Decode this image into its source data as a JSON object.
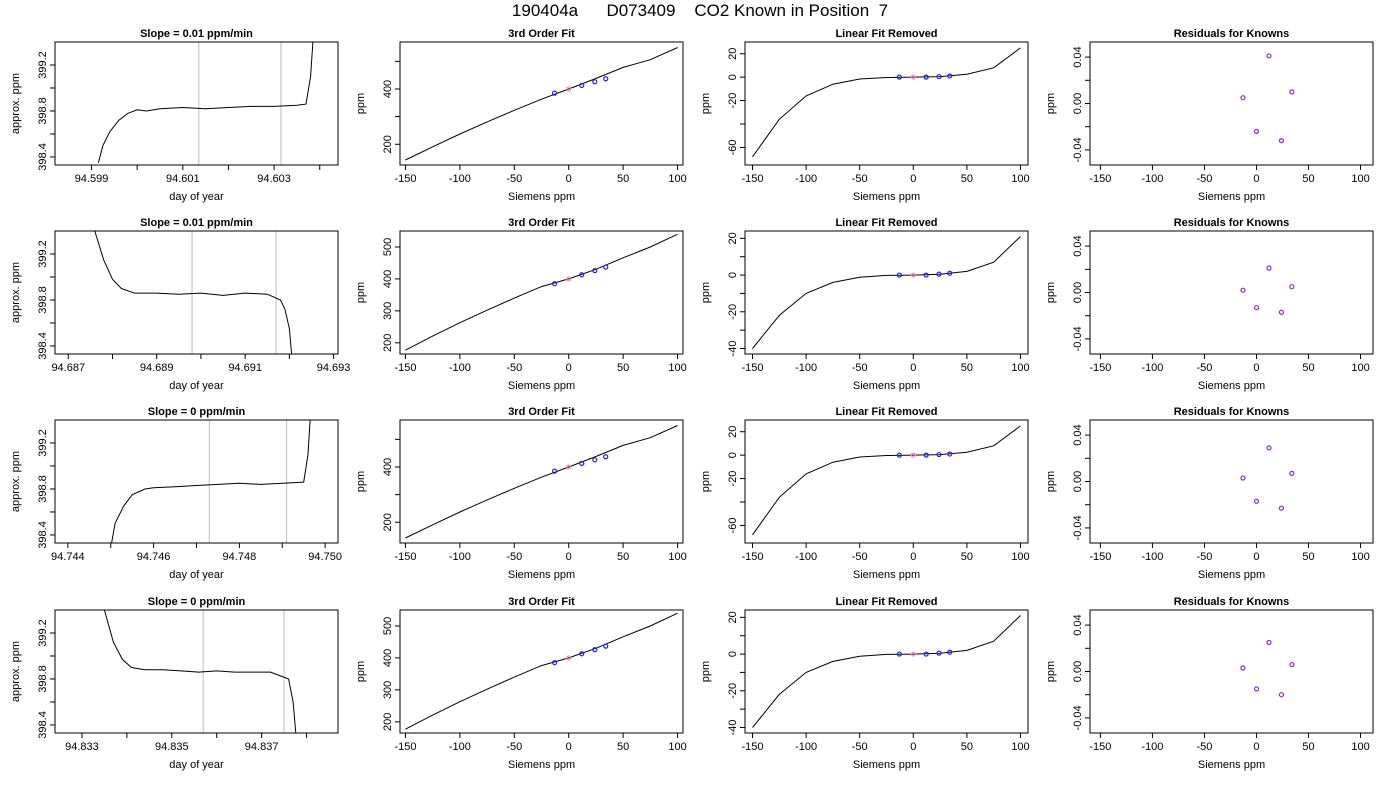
{
  "figure": {
    "title": "190404a      D073409    CO2 Known in Position  7"
  },
  "chart_data": [
    {
      "type": "line",
      "title": "Slope =  0.01  ppm/min",
      "xlabel": "day of year",
      "ylabel": "approx. ppm",
      "xlim": [
        94.5982,
        94.6044
      ],
      "ylim": [
        398.33,
        399.4
      ],
      "xticks": [
        94.599,
        94.6,
        94.601,
        94.602,
        94.603,
        94.604
      ],
      "xtick_labels": [
        "94.599",
        "",
        "94.601",
        "",
        "94.603",
        ""
      ],
      "yticks": [
        398.4,
        398.6,
        398.8,
        399.0,
        399.2
      ],
      "ytick_labels": [
        "398.4",
        "",
        "398.8",
        "",
        "399.2"
      ],
      "vlines": [
        94.60135,
        94.60315
      ],
      "x": [
        94.59915,
        94.59925,
        94.5994,
        94.5996,
        94.5998,
        94.6,
        94.6002,
        94.6005,
        94.601,
        94.6015,
        94.602,
        94.6025,
        94.603,
        94.6035,
        94.6037,
        94.6038,
        94.60385
      ],
      "y": [
        398.35,
        398.5,
        398.62,
        398.72,
        398.78,
        398.81,
        398.8,
        398.82,
        398.83,
        398.82,
        398.83,
        398.84,
        398.84,
        398.85,
        398.86,
        399.1,
        399.4
      ]
    },
    {
      "type": "line",
      "title": "3rd Order Fit",
      "xlabel": "Siemens ppm",
      "ylabel": "ppm",
      "xlim": [
        -155,
        105
      ],
      "ylim": [
        125,
        570
      ],
      "xticks": [
        -150,
        -100,
        -50,
        0,
        50,
        100
      ],
      "xtick_labels": [
        "-150",
        "-100",
        "-50",
        "0",
        "50",
        "100"
      ],
      "yticks": [
        200,
        300,
        400,
        500
      ],
      "ytick_labels": [
        "200",
        "",
        "400",
        ""
      ],
      "x": [
        -150,
        -125,
        -100,
        -75,
        -50,
        -25,
        0,
        25,
        50,
        75,
        100
      ],
      "y": [
        143,
        191,
        237,
        281,
        323,
        363,
        400,
        438,
        478,
        506,
        550
      ],
      "points_x": [
        -13,
        0,
        12,
        24,
        34
      ],
      "points_y": [
        385,
        400,
        413,
        426,
        437
      ]
    },
    {
      "type": "line",
      "title": "Linear Fit Removed",
      "xlabel": "Siemens ppm",
      "ylabel": "ppm",
      "xlim": [
        -157,
        107
      ],
      "ylim": [
        -75,
        30
      ],
      "xticks": [
        -150,
        -100,
        -50,
        0,
        50,
        100
      ],
      "xtick_labels": [
        "-150",
        "-100",
        "-50",
        "0",
        "50",
        "100"
      ],
      "yticks": [
        -60,
        -40,
        -20,
        0,
        20
      ],
      "ytick_labels": [
        "-60",
        "",
        "-20",
        "0",
        "20"
      ],
      "x": [
        -150,
        -125,
        -100,
        -75,
        -50,
        -25,
        0,
        25,
        50,
        75,
        100
      ],
      "y": [
        -68,
        -36,
        -16,
        -6,
        -1.6,
        -0.3,
        0,
        0.5,
        2.5,
        8,
        25
      ],
      "points_x": [
        -13,
        0,
        12,
        24,
        34
      ],
      "points_y": [
        0,
        0,
        0,
        0.5,
        1
      ]
    },
    {
      "type": "scatter",
      "title": "Residuals for Knowns",
      "xlabel": "Siemens ppm",
      "ylabel": "ppm",
      "xlim": [
        -160,
        112
      ],
      "ylim": [
        -0.053,
        0.053
      ],
      "xticks": [
        -150,
        -100,
        -50,
        0,
        50,
        100
      ],
      "xtick_labels": [
        "-150",
        "-100",
        "-50",
        "0",
        "50",
        "100"
      ],
      "yticks": [
        -0.04,
        -0.02,
        0,
        0.02,
        0.04
      ],
      "ytick_labels": [
        "-0.04",
        "",
        "0.00",
        "",
        "0.04"
      ],
      "x": [
        -13,
        0,
        12,
        24,
        34
      ],
      "y": [
        0.005,
        -0.024,
        0.041,
        -0.032,
        0.01
      ]
    },
    {
      "type": "line",
      "title": "Slope =  0.01  ppm/min",
      "xlabel": "day of year",
      "ylabel": "approx. ppm",
      "xlim": [
        94.6867,
        94.6931
      ],
      "ylim": [
        398.33,
        399.4
      ],
      "xticks": [
        94.687,
        94.688,
        94.689,
        94.69,
        94.691,
        94.692,
        94.693
      ],
      "xtick_labels": [
        "94.687",
        "",
        "94.689",
        "",
        "94.691",
        "",
        "94.693"
      ],
      "yticks": [
        398.4,
        398.6,
        398.8,
        399.0,
        399.2
      ],
      "ytick_labels": [
        "398.4",
        "",
        "398.8",
        "",
        "399.2"
      ],
      "vlines": [
        94.6898,
        94.6917
      ],
      "x": [
        94.6876,
        94.6878,
        94.688,
        94.6882,
        94.6885,
        94.689,
        94.6895,
        94.69,
        94.6905,
        94.691,
        94.6915,
        94.6918,
        94.6919,
        94.692,
        94.69205
      ],
      "y": [
        399.4,
        399.15,
        398.98,
        398.9,
        398.86,
        398.86,
        398.85,
        398.86,
        398.84,
        398.86,
        398.85,
        398.8,
        398.72,
        398.55,
        398.33
      ]
    },
    {
      "type": "line",
      "title": "3rd Order Fit",
      "xlabel": "Siemens ppm",
      "ylabel": "ppm",
      "xlim": [
        -155,
        105
      ],
      "ylim": [
        165,
        550
      ],
      "xticks": [
        -150,
        -100,
        -50,
        0,
        50,
        100
      ],
      "xtick_labels": [
        "-150",
        "-100",
        "-50",
        "0",
        "50",
        "100"
      ],
      "yticks": [
        200,
        300,
        400,
        500
      ],
      "ytick_labels": [
        "200",
        "300",
        "400",
        "500"
      ],
      "x": [
        -150,
        -125,
        -100,
        -75,
        -50,
        -25,
        0,
        25,
        50,
        75,
        100
      ],
      "y": [
        177,
        221,
        263,
        302,
        340,
        376,
        400,
        430,
        466,
        500,
        540
      ],
      "points_x": [
        -13,
        0,
        12,
        24,
        34
      ],
      "points_y": [
        385,
        400,
        413,
        426,
        437
      ]
    },
    {
      "type": "line",
      "title": "Linear Fit Removed",
      "xlabel": "Siemens ppm",
      "ylabel": "ppm",
      "xlim": [
        -157,
        107
      ],
      "ylim": [
        -43,
        24
      ],
      "xticks": [
        -150,
        -100,
        -50,
        0,
        50,
        100
      ],
      "xtick_labels": [
        "-150",
        "-100",
        "-50",
        "0",
        "50",
        "100"
      ],
      "yticks": [
        -40,
        -30,
        -20,
        -10,
        0,
        10,
        20
      ],
      "ytick_labels": [
        "-40",
        "",
        "-20",
        "",
        "0",
        "",
        "20"
      ],
      "x": [
        -150,
        -125,
        -100,
        -75,
        -50,
        -25,
        0,
        25,
        50,
        75,
        100
      ],
      "y": [
        -40,
        -22,
        -10,
        -4,
        -1.2,
        -0.2,
        0,
        0.4,
        2,
        7,
        21
      ],
      "points_x": [
        -13,
        0,
        12,
        24,
        34
      ],
      "points_y": [
        0,
        0,
        0,
        0.5,
        1
      ]
    },
    {
      "type": "scatter",
      "title": "Residuals for Knowns",
      "xlabel": "Siemens ppm",
      "ylabel": "ppm",
      "xlim": [
        -160,
        112
      ],
      "ylim": [
        -0.053,
        0.053
      ],
      "xticks": [
        -150,
        -100,
        -50,
        0,
        50,
        100
      ],
      "xtick_labels": [
        "-150",
        "-100",
        "-50",
        "0",
        "50",
        "100"
      ],
      "yticks": [
        -0.04,
        -0.02,
        0,
        0.02,
        0.04
      ],
      "ytick_labels": [
        "-0.04",
        "",
        "0.00",
        "",
        "0.04"
      ],
      "x": [
        -13,
        0,
        12,
        24,
        34
      ],
      "y": [
        0.002,
        -0.013,
        0.021,
        -0.017,
        0.005
      ]
    },
    {
      "type": "line",
      "title": "Slope =  0  ppm/min",
      "xlabel": "day of year",
      "ylabel": "approx. ppm",
      "xlim": [
        94.7437,
        94.7503
      ],
      "ylim": [
        398.33,
        399.4
      ],
      "xticks": [
        94.744,
        94.745,
        94.746,
        94.747,
        94.748,
        94.749,
        94.75
      ],
      "xtick_labels": [
        "94.744",
        "",
        "94.746",
        "",
        "94.748",
        "",
        "94.750"
      ],
      "yticks": [
        398.4,
        398.6,
        398.8,
        399.0,
        399.2
      ],
      "ytick_labels": [
        "398.4",
        "",
        "398.8",
        "",
        "399.2"
      ],
      "vlines": [
        94.7473,
        94.7491
      ],
      "x": [
        94.74502,
        94.7451,
        94.7453,
        94.7455,
        94.7458,
        94.746,
        94.7465,
        94.747,
        94.7475,
        94.748,
        94.7485,
        94.749,
        94.7495,
        94.7496,
        94.74965
      ],
      "y": [
        398.33,
        398.5,
        398.65,
        398.75,
        398.8,
        398.81,
        398.82,
        398.83,
        398.84,
        398.85,
        398.84,
        398.85,
        398.86,
        399.1,
        399.4
      ]
    },
    {
      "type": "line",
      "title": "3rd Order Fit",
      "xlabel": "Siemens ppm",
      "ylabel": "ppm",
      "xlim": [
        -155,
        105
      ],
      "ylim": [
        125,
        570
      ],
      "xticks": [
        -150,
        -100,
        -50,
        0,
        50,
        100
      ],
      "xtick_labels": [
        "-150",
        "-100",
        "-50",
        "0",
        "50",
        "100"
      ],
      "yticks": [
        200,
        300,
        400,
        500
      ],
      "ytick_labels": [
        "200",
        "",
        "400",
        ""
      ],
      "x": [
        -150,
        -125,
        -100,
        -75,
        -50,
        -25,
        0,
        25,
        50,
        75,
        100
      ],
      "y": [
        143,
        191,
        237,
        281,
        323,
        363,
        400,
        438,
        478,
        506,
        550
      ],
      "points_x": [
        -13,
        0,
        12,
        24,
        34
      ],
      "points_y": [
        385,
        400,
        413,
        426,
        437
      ]
    },
    {
      "type": "line",
      "title": "Linear Fit Removed",
      "xlabel": "Siemens ppm",
      "ylabel": "ppm",
      "xlim": [
        -157,
        107
      ],
      "ylim": [
        -75,
        30
      ],
      "xticks": [
        -150,
        -100,
        -50,
        0,
        50,
        100
      ],
      "xtick_labels": [
        "-150",
        "-100",
        "-50",
        "0",
        "50",
        "100"
      ],
      "yticks": [
        -60,
        -40,
        -20,
        0,
        20
      ],
      "ytick_labels": [
        "-60",
        "",
        "-20",
        "0",
        "20"
      ],
      "x": [
        -150,
        -125,
        -100,
        -75,
        -50,
        -25,
        0,
        25,
        50,
        75,
        100
      ],
      "y": [
        -68,
        -36,
        -16,
        -6,
        -1.6,
        -0.3,
        0,
        0.5,
        2.5,
        8,
        25
      ],
      "points_x": [
        -13,
        0,
        12,
        24,
        34
      ],
      "points_y": [
        0,
        0,
        0,
        0.5,
        1
      ]
    },
    {
      "type": "scatter",
      "title": "Residuals for Knowns",
      "xlabel": "Siemens ppm",
      "ylabel": "ppm",
      "xlim": [
        -160,
        112
      ],
      "ylim": [
        -0.053,
        0.053
      ],
      "xticks": [
        -150,
        -100,
        -50,
        0,
        50,
        100
      ],
      "xtick_labels": [
        "-150",
        "-100",
        "-50",
        "0",
        "50",
        "100"
      ],
      "yticks": [
        -0.04,
        -0.02,
        0,
        0.02,
        0.04
      ],
      "ytick_labels": [
        "-0.04",
        "",
        "0.00",
        "",
        "0.04"
      ],
      "x": [
        -13,
        0,
        12,
        24,
        34
      ],
      "y": [
        0.003,
        -0.017,
        0.029,
        -0.023,
        0.007
      ]
    },
    {
      "type": "line",
      "title": "Slope =  0  ppm/min",
      "xlabel": "day of year",
      "ylabel": "approx. ppm",
      "xlim": [
        94.8324,
        94.8387
      ],
      "ylim": [
        398.33,
        399.4
      ],
      "xticks": [
        94.833,
        94.834,
        94.835,
        94.836,
        94.837,
        94.838
      ],
      "xtick_labels": [
        "94.833",
        "",
        "94.835",
        "",
        "94.837",
        ""
      ],
      "yticks": [
        398.4,
        398.6,
        398.8,
        399.0,
        399.2
      ],
      "ytick_labels": [
        "398.4",
        "",
        "398.8",
        "",
        "399.2"
      ],
      "vlines": [
        94.8357,
        94.8375
      ],
      "x": [
        94.8335,
        94.8337,
        94.8339,
        94.8341,
        94.8344,
        94.8348,
        94.8352,
        94.8356,
        94.836,
        94.8364,
        94.8368,
        94.8372,
        94.8376,
        94.8377,
        94.83776
      ],
      "y": [
        399.4,
        399.12,
        398.97,
        398.9,
        398.88,
        398.88,
        398.87,
        398.86,
        398.87,
        398.86,
        398.86,
        398.86,
        398.8,
        398.6,
        398.33
      ]
    },
    {
      "type": "line",
      "title": "3rd Order Fit",
      "xlabel": "Siemens ppm",
      "ylabel": "ppm",
      "xlim": [
        -155,
        105
      ],
      "ylim": [
        165,
        550
      ],
      "xticks": [
        -150,
        -100,
        -50,
        0,
        50,
        100
      ],
      "xtick_labels": [
        "-150",
        "-100",
        "-50",
        "0",
        "50",
        "100"
      ],
      "yticks": [
        200,
        300,
        400,
        500
      ],
      "ytick_labels": [
        "200",
        "300",
        "400",
        "500"
      ],
      "x": [
        -150,
        -125,
        -100,
        -75,
        -50,
        -25,
        0,
        25,
        50,
        75,
        100
      ],
      "y": [
        177,
        221,
        263,
        302,
        340,
        376,
        400,
        430,
        466,
        500,
        540
      ],
      "points_x": [
        -13,
        0,
        12,
        24,
        34
      ],
      "points_y": [
        385,
        400,
        413,
        426,
        437
      ]
    },
    {
      "type": "line",
      "title": "Linear Fit Removed",
      "xlabel": "Siemens ppm",
      "ylabel": "ppm",
      "xlim": [
        -157,
        107
      ],
      "ylim": [
        -43,
        24
      ],
      "xticks": [
        -150,
        -100,
        -50,
        0,
        50,
        100
      ],
      "xtick_labels": [
        "-150",
        "-100",
        "-50",
        "0",
        "50",
        "100"
      ],
      "yticks": [
        -40,
        -30,
        -20,
        -10,
        0,
        10,
        20
      ],
      "ytick_labels": [
        "-40",
        "",
        "-20",
        "",
        "0",
        "",
        "20"
      ],
      "x": [
        -150,
        -125,
        -100,
        -75,
        -50,
        -25,
        0,
        25,
        50,
        75,
        100
      ],
      "y": [
        -40,
        -22,
        -10,
        -4,
        -1.2,
        -0.2,
        0,
        0.4,
        2,
        7,
        21
      ],
      "points_x": [
        -13,
        0,
        12,
        24,
        34
      ],
      "points_y": [
        0,
        0,
        0,
        0.5,
        1
      ]
    },
    {
      "type": "scatter",
      "title": "Residuals for Knowns",
      "xlabel": "Siemens ppm",
      "ylabel": "ppm",
      "xlim": [
        -160,
        112
      ],
      "ylim": [
        -0.053,
        0.053
      ],
      "xticks": [
        -150,
        -100,
        -50,
        0,
        50,
        100
      ],
      "xtick_labels": [
        "-150",
        "-100",
        "-50",
        "0",
        "50",
        "100"
      ],
      "yticks": [
        -0.04,
        -0.02,
        0,
        0.02,
        0.04
      ],
      "ytick_labels": [
        "-0.04",
        "",
        "0.00",
        "",
        "0.04"
      ],
      "x": [
        -13,
        0,
        12,
        24,
        34
      ],
      "y": [
        0.003,
        -0.015,
        0.025,
        -0.02,
        0.006
      ]
    }
  ],
  "colors": {
    "line": "#000000",
    "vline": "#c8c8c8",
    "point": "#2222dd",
    "residual": "#8a2be2",
    "highlight": "#ff88bb"
  }
}
